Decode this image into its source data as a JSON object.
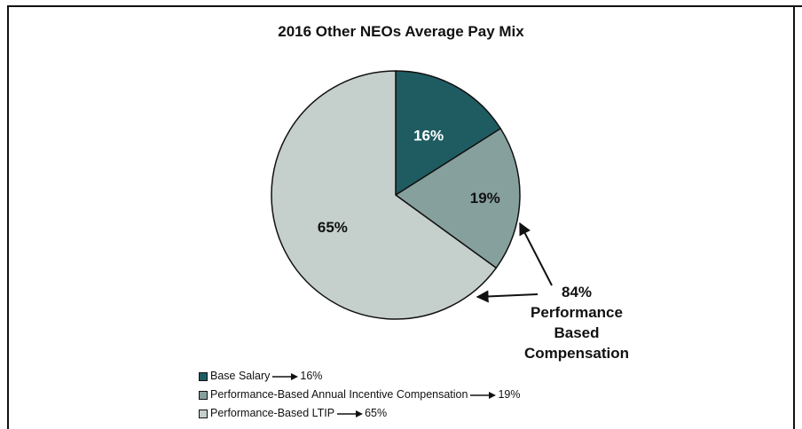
{
  "chart_data": {
    "type": "pie",
    "title": "2016 Other NEOs Average Pay Mix",
    "slices": [
      {
        "label": "Base Salary",
        "value": 16,
        "value_label": "16%",
        "color": "#1f5c62",
        "label_color": "#ffffff"
      },
      {
        "label": "Performance-Based Annual Incentive Compensation",
        "value": 19,
        "value_label": "19%",
        "color": "#86a09e",
        "label_color": "#111111"
      },
      {
        "label": "Performance-Based LTIP",
        "value": 65,
        "value_label": "65%",
        "color": "#c5cfcc",
        "label_color": "#111111"
      }
    ],
    "callout": {
      "percent": "84%",
      "lines": [
        "Performance",
        "Based",
        "Compensation"
      ]
    },
    "legend": [
      {
        "text": "Base Salary",
        "value": "16%",
        "color": "#1f5c62"
      },
      {
        "text": "Performance-Based Annual Incentive Compensation",
        "value": "19%",
        "color": "#86a09e"
      },
      {
        "text": "Performance-Based LTIP",
        "value": "65%",
        "color": "#c5cfcc"
      }
    ],
    "legend_position": "bottom-left"
  }
}
